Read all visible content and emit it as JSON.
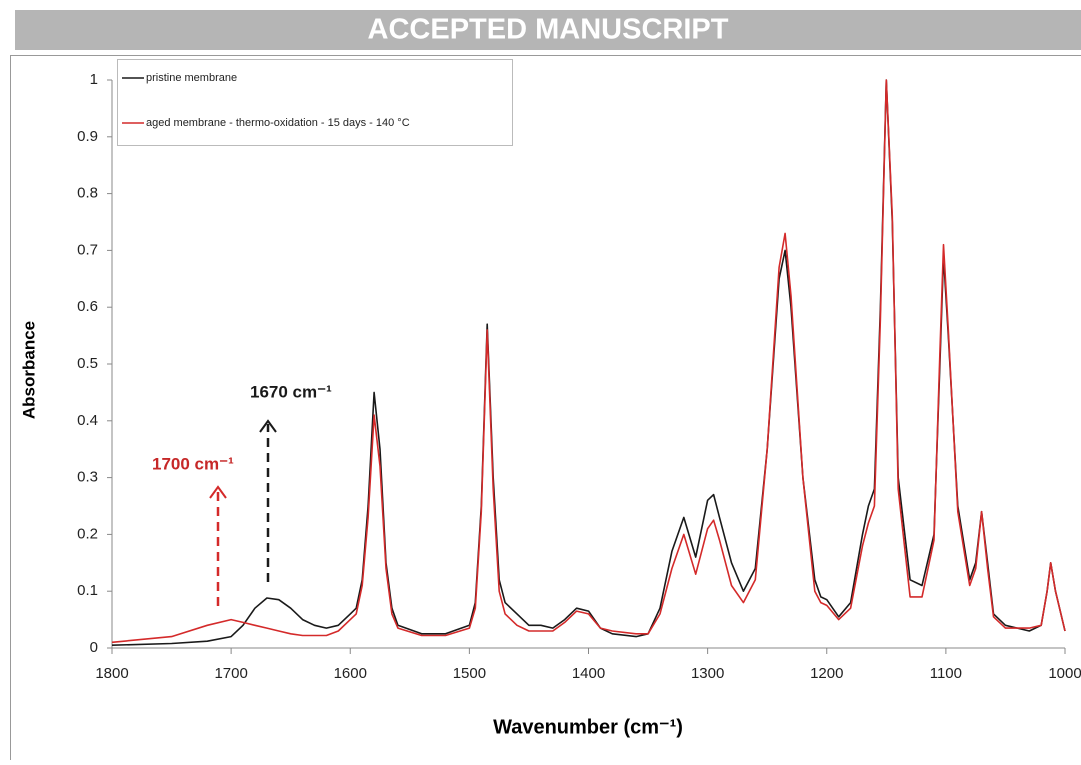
{
  "banner": "ACCEPTED MANUSCRIPT",
  "chart_data": {
    "type": "line",
    "xlabel": "Wavenumber (cm⁻¹)",
    "ylabel": "Absorbance",
    "annotations": [
      "1670 cm⁻¹",
      "1700 cm⁻¹"
    ],
    "xlim": [
      1800,
      1000
    ],
    "xticks": [
      1800,
      1700,
      1600,
      1500,
      1400,
      1300,
      1200,
      1100,
      1000
    ],
    "ylim": [
      0,
      1
    ],
    "yticks": [
      0,
      0.1,
      0.2,
      0.3,
      0.4,
      0.5,
      0.6,
      0.7,
      0.8,
      0.9,
      1
    ],
    "legend": "upper left",
    "x": [
      1800,
      1750,
      1720,
      1700,
      1690,
      1680,
      1670,
      1660,
      1650,
      1640,
      1630,
      1620,
      1610,
      1600,
      1595,
      1590,
      1585,
      1580,
      1575,
      1570,
      1565,
      1560,
      1540,
      1520,
      1500,
      1495,
      1490,
      1485,
      1480,
      1475,
      1470,
      1460,
      1450,
      1440,
      1430,
      1420,
      1410,
      1400,
      1390,
      1380,
      1360,
      1350,
      1340,
      1330,
      1320,
      1310,
      1300,
      1295,
      1290,
      1280,
      1270,
      1260,
      1250,
      1240,
      1235,
      1230,
      1220,
      1210,
      1205,
      1200,
      1190,
      1180,
      1170,
      1165,
      1160,
      1155,
      1150,
      1145,
      1140,
      1130,
      1120,
      1110,
      1105,
      1102,
      1098,
      1090,
      1080,
      1075,
      1070,
      1065,
      1060,
      1050,
      1030,
      1020,
      1015,
      1012,
      1008,
      1000
    ],
    "series": [
      {
        "name": "pristine membrane",
        "color": "#1a1a1a",
        "values": [
          0.005,
          0.008,
          0.012,
          0.02,
          0.04,
          0.07,
          0.088,
          0.085,
          0.07,
          0.05,
          0.04,
          0.035,
          0.04,
          0.06,
          0.07,
          0.12,
          0.25,
          0.45,
          0.35,
          0.15,
          0.07,
          0.04,
          0.025,
          0.025,
          0.04,
          0.08,
          0.25,
          0.57,
          0.3,
          0.12,
          0.08,
          0.06,
          0.04,
          0.04,
          0.035,
          0.05,
          0.07,
          0.065,
          0.035,
          0.025,
          0.02,
          0.025,
          0.07,
          0.17,
          0.23,
          0.16,
          0.26,
          0.27,
          0.23,
          0.15,
          0.1,
          0.14,
          0.35,
          0.65,
          0.7,
          0.6,
          0.3,
          0.12,
          0.09,
          0.085,
          0.055,
          0.08,
          0.2,
          0.25,
          0.28,
          0.6,
          1.0,
          0.75,
          0.3,
          0.12,
          0.11,
          0.2,
          0.5,
          0.69,
          0.55,
          0.25,
          0.12,
          0.15,
          0.24,
          0.15,
          0.06,
          0.04,
          0.03,
          0.04,
          0.1,
          0.15,
          0.1,
          0.03
        ]
      },
      {
        "name": "aged membrane - thermo-oxidation - 15 days - 140 °C",
        "color": "#d42a2a",
        "values": [
          0.01,
          0.02,
          0.04,
          0.05,
          0.045,
          0.04,
          0.035,
          0.03,
          0.025,
          0.022,
          0.022,
          0.022,
          0.03,
          0.05,
          0.06,
          0.11,
          0.23,
          0.41,
          0.32,
          0.14,
          0.06,
          0.035,
          0.022,
          0.022,
          0.035,
          0.07,
          0.24,
          0.56,
          0.28,
          0.1,
          0.06,
          0.04,
          0.03,
          0.03,
          0.03,
          0.045,
          0.065,
          0.06,
          0.035,
          0.03,
          0.025,
          0.025,
          0.06,
          0.14,
          0.2,
          0.13,
          0.21,
          0.225,
          0.19,
          0.11,
          0.08,
          0.12,
          0.35,
          0.67,
          0.73,
          0.62,
          0.3,
          0.1,
          0.08,
          0.075,
          0.05,
          0.07,
          0.18,
          0.22,
          0.25,
          0.58,
          1.0,
          0.76,
          0.28,
          0.09,
          0.09,
          0.19,
          0.52,
          0.71,
          0.56,
          0.24,
          0.11,
          0.14,
          0.24,
          0.14,
          0.055,
          0.035,
          0.035,
          0.04,
          0.1,
          0.15,
          0.1,
          0.03
        ]
      }
    ]
  }
}
